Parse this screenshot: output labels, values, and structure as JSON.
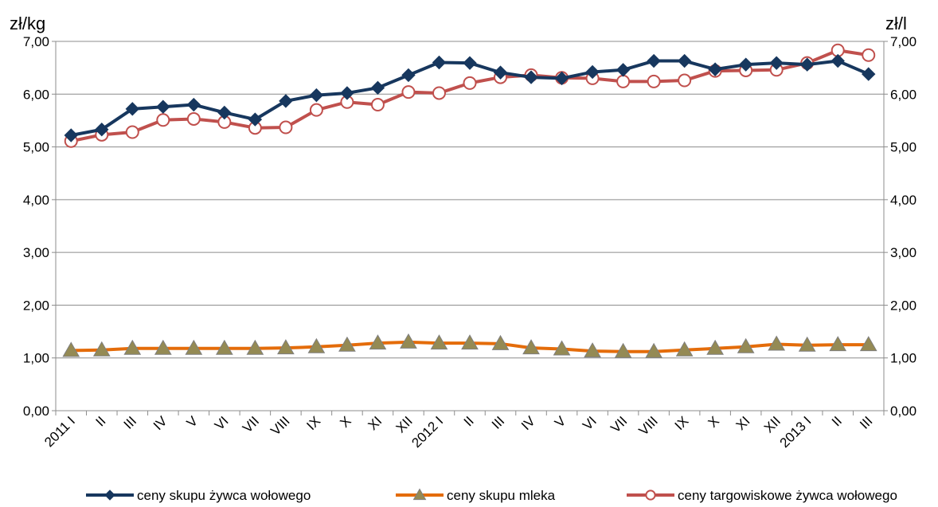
{
  "chart_data": {
    "type": "line",
    "y_unit_left": "zł/kg",
    "y_unit_right": "zł/l",
    "ylim": [
      0,
      7
    ],
    "y_ticks": [
      "0,00",
      "1,00",
      "2,00",
      "3,00",
      "4,00",
      "5,00",
      "6,00",
      "7,00"
    ],
    "grid": true,
    "legend_position": "bottom",
    "categories": [
      "2011 I",
      "II",
      "III",
      "IV",
      "V",
      "VI",
      "VII",
      "VIII",
      "IX",
      "X",
      "XI",
      "XII",
      "2012 I",
      "II",
      "III",
      "IV",
      "V",
      "VI",
      "VII",
      "VIII",
      "IX",
      "X",
      "XI",
      "XII",
      "2013 I",
      "II",
      "III"
    ],
    "series": [
      {
        "name": "ceny skupu żywca wołowego",
        "color": "#17375e",
        "marker": "diamond",
        "axis": "left",
        "values": [
          5.22,
          5.33,
          5.72,
          5.76,
          5.8,
          5.65,
          5.52,
          5.87,
          5.98,
          6.02,
          6.12,
          6.36,
          6.6,
          6.59,
          6.41,
          6.32,
          6.3,
          6.42,
          6.46,
          6.63,
          6.63,
          6.47,
          6.56,
          6.59,
          6.56,
          6.63,
          6.38
        ]
      },
      {
        "name": "ceny skupu mleka",
        "color": "#e46c0a",
        "marker": "triangle",
        "axis": "right",
        "values": [
          1.14,
          1.15,
          1.18,
          1.18,
          1.18,
          1.18,
          1.18,
          1.19,
          1.21,
          1.24,
          1.28,
          1.3,
          1.28,
          1.28,
          1.27,
          1.19,
          1.17,
          1.13,
          1.12,
          1.12,
          1.15,
          1.18,
          1.21,
          1.26,
          1.24,
          1.25,
          1.25
        ]
      },
      {
        "name": "ceny targowiskowe żywca wołowego",
        "color": "#c0504d",
        "marker": "circle-open",
        "axis": "left",
        "values": [
          5.11,
          5.23,
          5.28,
          5.51,
          5.53,
          5.47,
          5.36,
          5.37,
          5.7,
          5.85,
          5.8,
          6.04,
          6.02,
          6.21,
          6.32,
          6.36,
          6.31,
          6.3,
          6.24,
          6.24,
          6.26,
          6.44,
          6.45,
          6.46,
          6.59,
          6.83,
          6.74
        ]
      }
    ]
  }
}
